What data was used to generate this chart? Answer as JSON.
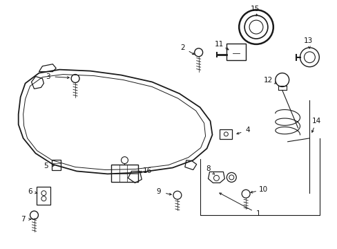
{
  "bg_color": "#ffffff",
  "fig_width": 4.89,
  "fig_height": 3.6,
  "dpi": 100,
  "line_color": "#1a1a1a",
  "label_fontsize": 7.5,
  "label_color": "#111111"
}
